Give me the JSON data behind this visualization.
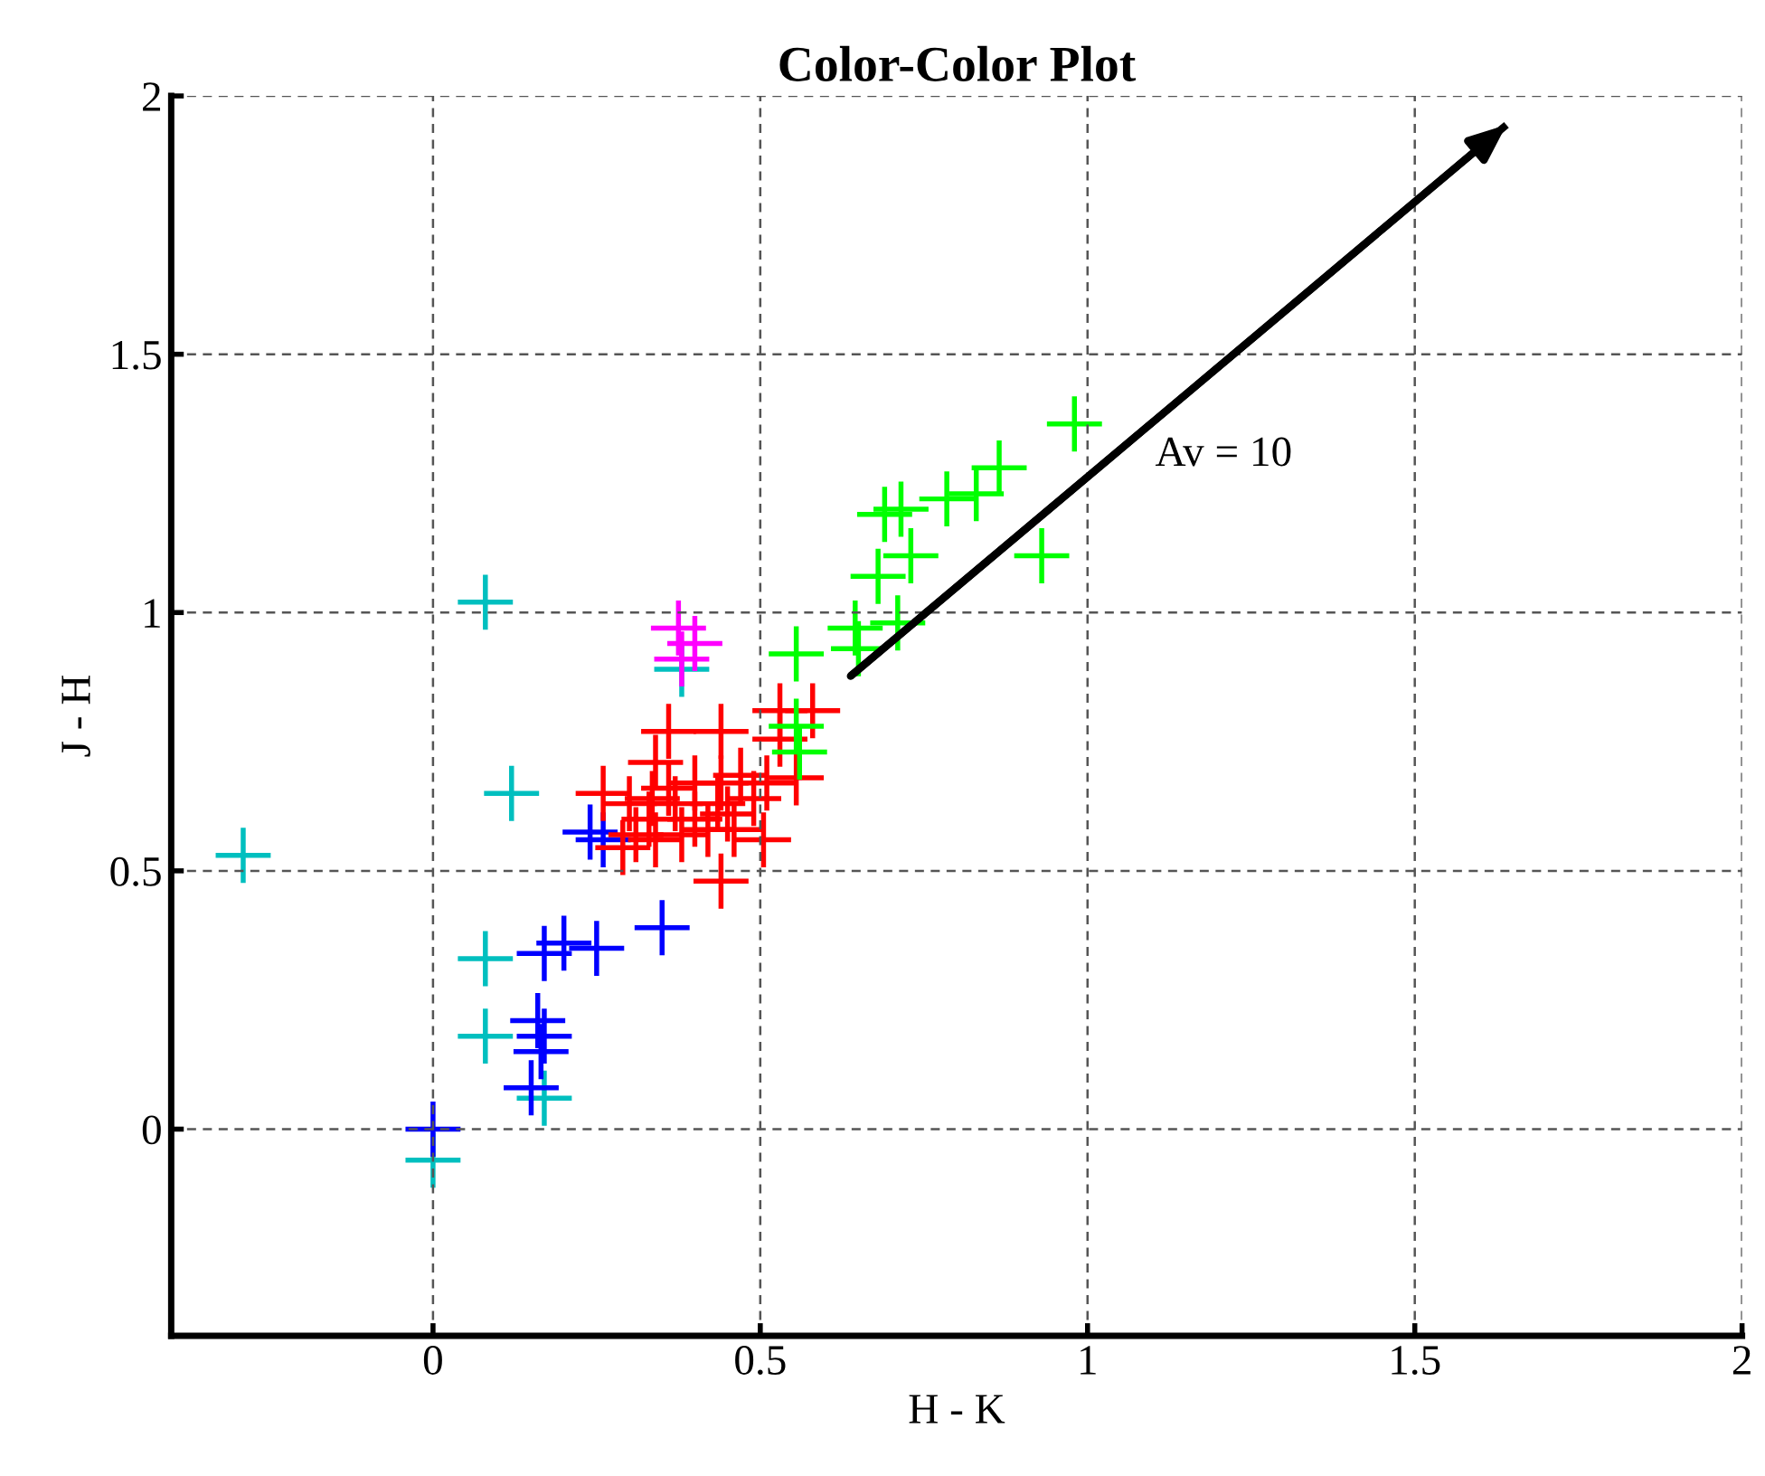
{
  "chart_data": {
    "type": "scatter",
    "title": "Color-Color Plot",
    "xlabel": "H - K",
    "ylabel": "J - H",
    "xlim": [
      -0.4,
      2
    ],
    "ylim": [
      -0.4,
      2
    ],
    "xticks": [
      0,
      0.5,
      1,
      1.5,
      2
    ],
    "yticks": [
      0,
      0.5,
      1,
      1.5,
      2
    ],
    "grid": true,
    "marker": "cross",
    "annotations": [
      "Av = 10"
    ],
    "series": [
      {
        "color": "#00bfbf",
        "x": [
          0.08,
          0.12,
          -0.29,
          0.08,
          0.08,
          0.17,
          0.0,
          0.38
        ],
        "values": [
          1.02,
          0.65,
          0.53,
          0.33,
          0.18,
          0.06,
          -0.06,
          0.89
        ]
      },
      {
        "color": "#0000ff",
        "x": [
          0.0,
          0.24,
          0.26,
          0.35,
          0.2,
          0.25,
          0.17,
          0.16,
          0.17,
          0.165,
          0.15
        ],
        "values": [
          0.0,
          0.575,
          0.56,
          0.39,
          0.36,
          0.35,
          0.34,
          0.21,
          0.18,
          0.15,
          0.08
        ]
      },
      {
        "color": "#ff00ff",
        "x": [
          0.375,
          0.4,
          0.38
        ],
        "values": [
          0.97,
          0.94,
          0.91
        ]
      },
      {
        "color": "#ff0000",
        "x": [
          0.36,
          0.44,
          0.53,
          0.58,
          0.555,
          0.26,
          0.3,
          0.34,
          0.36,
          0.4,
          0.44,
          0.47,
          0.51,
          0.31,
          0.34,
          0.38,
          0.42,
          0.46,
          0.505,
          0.44,
          0.33,
          0.4,
          0.45,
          0.335,
          0.29,
          0.49,
          0.435,
          0.37,
          0.53
        ],
        "values": [
          0.77,
          0.77,
          0.81,
          0.81,
          0.68,
          0.65,
          0.63,
          0.71,
          0.66,
          0.67,
          0.67,
          0.685,
          0.67,
          0.57,
          0.56,
          0.57,
          0.58,
          0.58,
          0.56,
          0.48,
          0.6,
          0.6,
          0.61,
          0.64,
          0.545,
          0.64,
          0.63,
          0.63,
          0.755
        ]
      },
      {
        "color": "#00ff00",
        "x": [
          0.98,
          0.865,
          0.83,
          0.785,
          0.715,
          0.69,
          0.73,
          0.68,
          0.93,
          0.645,
          0.71,
          0.65,
          0.555,
          0.555,
          0.56
        ],
        "values": [
          1.365,
          1.28,
          1.23,
          1.22,
          1.2,
          1.19,
          1.11,
          1.07,
          1.11,
          0.97,
          0.98,
          0.93,
          0.92,
          0.78,
          0.73
        ]
      },
      {
        "type": "line",
        "color": "#000000",
        "marker": "none",
        "x": [
          0.638,
          1.64
        ],
        "values": [
          0.877,
          1.944
        ]
      }
    ]
  }
}
